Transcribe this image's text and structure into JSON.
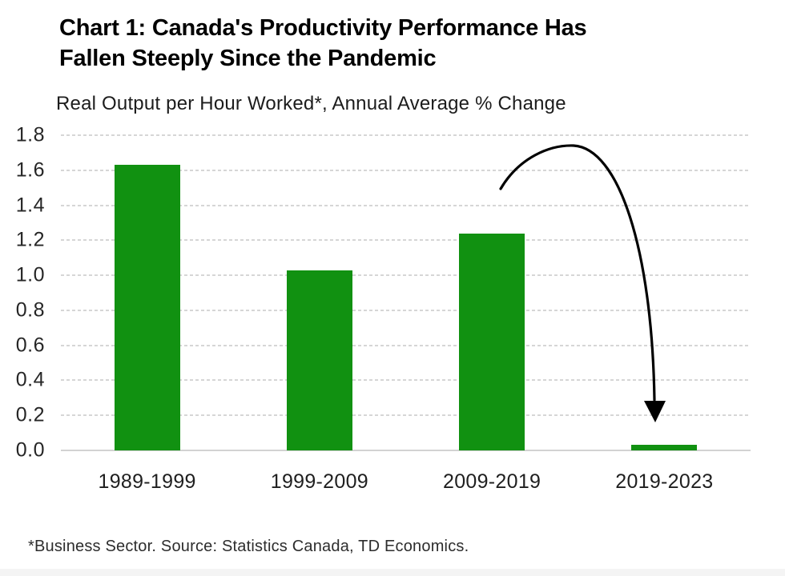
{
  "chart_data": {
    "type": "bar",
    "title": "Chart 1: Canada's Productivity Performance Has\nFallen Steeply Since the Pandemic",
    "subtitle": "Real Output per Hour Worked*, Annual Average % Change",
    "source_note": "*Business Sector. Source: Statistics Canada, TD Economics.",
    "categories": [
      "1989-1999",
      "1999-2009",
      "2009-2019",
      "2019-2023"
    ],
    "values": [
      1.63,
      1.03,
      1.24,
      0.03
    ],
    "ylim": [
      0,
      1.8
    ],
    "ytick_step": 0.2,
    "ytick_labels": [
      "0.0",
      "0.2",
      "0.4",
      "0.6",
      "0.8",
      "1.0",
      "1.2",
      "1.4",
      "1.6",
      "1.8"
    ],
    "xlabel": "",
    "ylabel": "",
    "grid": "horizontal-dashed",
    "legend": "none",
    "bar_color": "#119111",
    "gridline_color": "#d6d6d6",
    "annotation": {
      "type": "curved-arrow",
      "color": "#000000",
      "points_to_category": "2019-2023"
    }
  }
}
